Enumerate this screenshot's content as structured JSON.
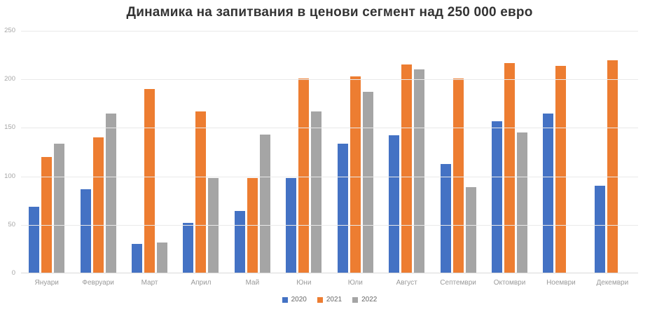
{
  "title": "Динамика на запитвания в ценови сегмент над 250 000 евро",
  "chart_data": {
    "type": "bar",
    "title": "Динамика на запитвания в ценови сегмент над 250 000 евро",
    "categories": [
      "Януари",
      "Февруари",
      "Март",
      "Април",
      "Май",
      "Юни",
      "Юли",
      "Август",
      "Септември",
      "Октомври",
      "Ноември",
      "Декември"
    ],
    "series": [
      {
        "name": "2020",
        "color": "#4472C4",
        "values": [
          69,
          87,
          30,
          52,
          64,
          98,
          134,
          142,
          113,
          157,
          165,
          90
        ]
      },
      {
        "name": "2021",
        "color": "#ED7D31",
        "values": [
          120,
          140,
          190,
          167,
          98,
          201,
          203,
          215,
          201,
          217,
          214,
          220
        ]
      },
      {
        "name": "2022",
        "color": "#A5A5A5",
        "values": [
          134,
          165,
          32,
          98,
          143,
          167,
          187,
          210,
          89,
          145,
          null,
          null
        ]
      }
    ],
    "xlabel": "",
    "ylabel": "",
    "ylim": [
      0,
      250
    ],
    "yticks": [
      0,
      50,
      100,
      150,
      200,
      250
    ],
    "grid": true,
    "legend_position": "bottom"
  },
  "colors": {
    "background": "#FFFFFF",
    "title": "#333333",
    "gridline": "#E9E9E9",
    "axis_line": "#D9D9D9",
    "y_tick_label": "#A6A6A6",
    "x_label": "#9A9A9A",
    "legend_label": "#666666"
  }
}
